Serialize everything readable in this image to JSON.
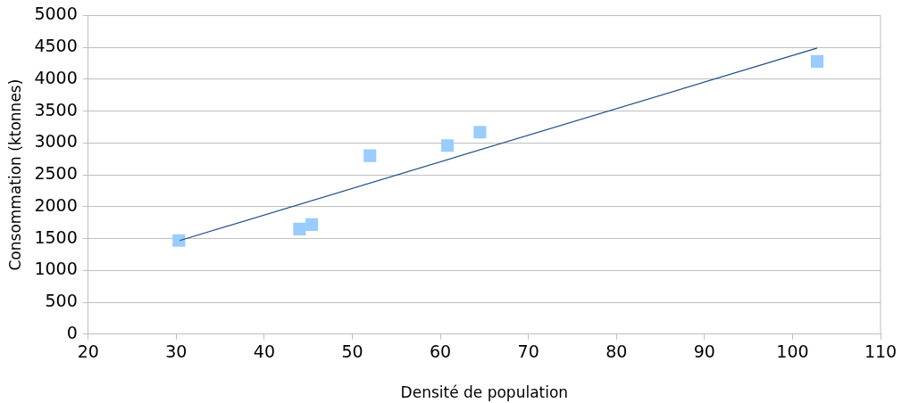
{
  "chart_data": {
    "type": "scatter",
    "xlabel": "Densité de population",
    "ylabel": "Consommation (ktonnes)",
    "x": [
      30.3,
      44.0,
      45.4,
      52.0,
      60.8,
      64.5,
      102.8
    ],
    "series": [
      {
        "type": "scatter",
        "color": "#99ccff",
        "marker": "square",
        "values": [
          1470,
          1650,
          1720,
          2800,
          2960,
          3170,
          4280
        ]
      },
      {
        "type": "line",
        "color": "#1f4e84",
        "marker": "none",
        "x": [
          30.4,
          102.8
        ],
        "values": [
          1470,
          4490
        ]
      }
    ],
    "xlim": [
      20,
      110
    ],
    "xticks": [
      20,
      30,
      40,
      50,
      60,
      70,
      80,
      90,
      100,
      110
    ],
    "ylim": [
      0,
      5000
    ],
    "yticks": [
      0,
      500,
      1000,
      1500,
      2000,
      2500,
      3000,
      3500,
      4000,
      4500,
      5000
    ],
    "grid": "y"
  }
}
